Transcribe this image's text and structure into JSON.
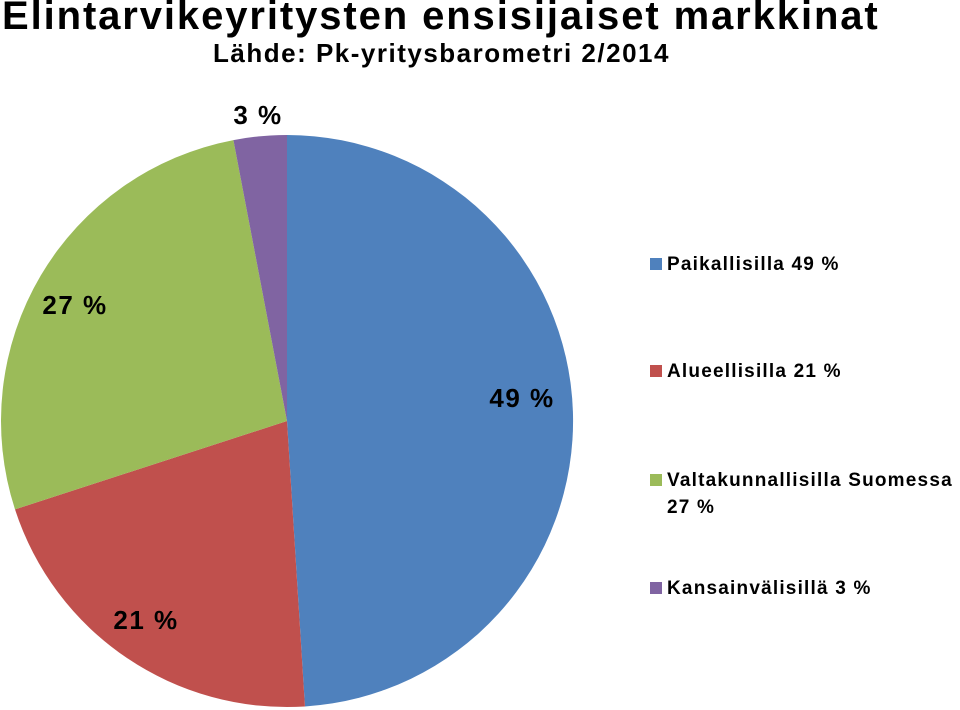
{
  "chart_data": {
    "type": "pie",
    "title": "Elintarvikeyritysten ensisijaiset markkinat",
    "subtitle": "Lähde: Pk-yritysbarometri 2/2014",
    "values": [
      49,
      21,
      27,
      3
    ],
    "data_labels": [
      "49 %",
      "21 %",
      "27 %",
      "3 %"
    ],
    "legend": [
      "Paikallisilla 49 %",
      "Alueellisilla 21 %",
      "Valtakunnallisilla Suomessa 27 %",
      "Kansainvälisillä 3 %"
    ],
    "colors": [
      "#4F81BD",
      "#C0504D",
      "#9BBB59",
      "#8064A2"
    ],
    "legend_position": "right"
  }
}
